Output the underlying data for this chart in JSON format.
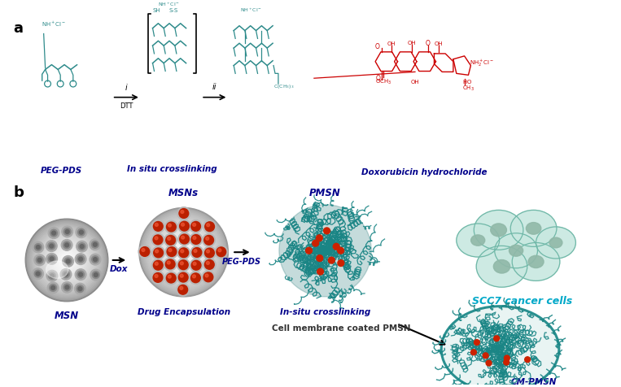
{
  "bg_color": "#ffffff",
  "panel_a_label": "a",
  "panel_b_label": "b",
  "teal_color": "#2e8b8b",
  "dark_blue": "#00008B",
  "red_color": "#cc0000",
  "text_labels": {
    "peg_pds": "PEG-PDS",
    "in_situ": "In situ crosslinking",
    "dox_hcl": "Doxorubicin hydrochloride",
    "msn": "MSN",
    "msns": "MSNs",
    "pmsn": "PMSN",
    "dox_label": "Dox",
    "peg_pds_label": "PEG-PDS",
    "drug_encap": "Drug Encapsulation",
    "in_situ_cross": "In-situ crosslinking",
    "cell_membrane": "Cell membrane coated PMSN",
    "scc7": "SCC7 cancer cells",
    "cm_pmsn": "CM-PMSN"
  },
  "step_i": "i",
  "step_ii": "ii",
  "dtt": "DTT"
}
